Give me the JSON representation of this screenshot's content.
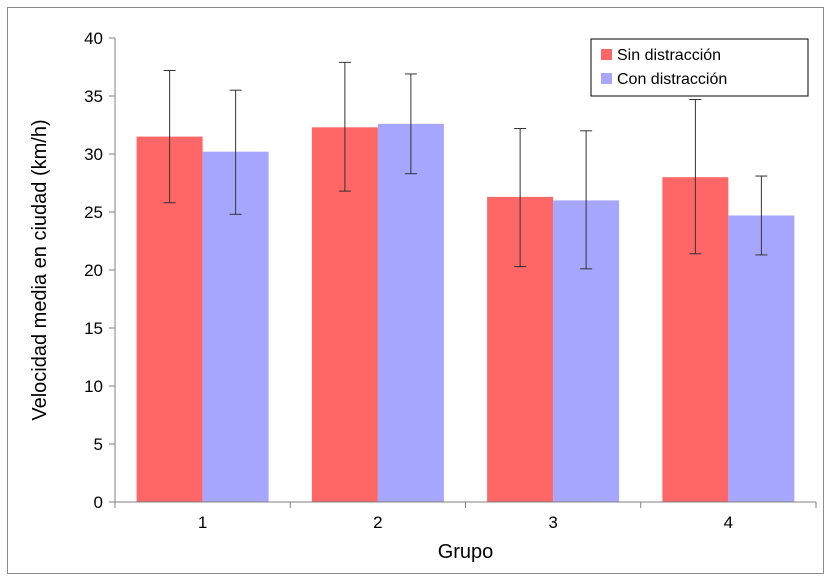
{
  "chart_data": {
    "type": "bar",
    "title": "",
    "xlabel": "Grupo",
    "ylabel": "Velocidad media en ciudad (km/h)",
    "categories": [
      "1",
      "2",
      "3",
      "4"
    ],
    "ylim": [
      0,
      40
    ],
    "yticks": [
      0,
      5,
      10,
      15,
      20,
      25,
      30,
      35,
      40
    ],
    "grid": false,
    "legend_position": "top-right",
    "series": [
      {
        "name": "Sin distracción",
        "color": "#ff6666",
        "values": [
          31.5,
          32.3,
          26.3,
          28.0
        ],
        "error_low": [
          25.8,
          26.8,
          20.3,
          21.4
        ],
        "error_high": [
          37.2,
          37.9,
          32.2,
          34.7
        ]
      },
      {
        "name": "Con distracción",
        "color": "#a6a6ff",
        "values": [
          30.2,
          32.6,
          26.0,
          24.7
        ],
        "error_low": [
          24.8,
          28.3,
          20.1,
          21.3
        ],
        "error_high": [
          35.5,
          36.9,
          32.0,
          28.1
        ]
      }
    ]
  }
}
